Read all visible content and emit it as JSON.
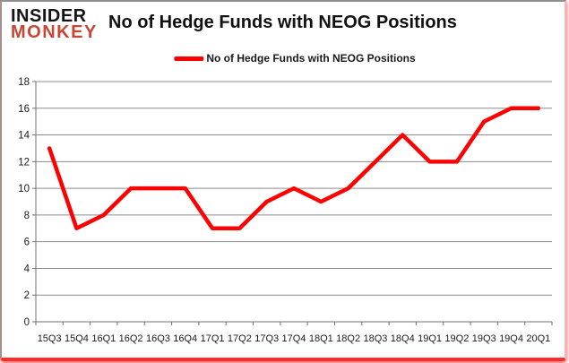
{
  "logo": {
    "line1": "INSIDER",
    "line2": "MONKEY"
  },
  "header": {
    "title": "No of Hedge Funds with NEOG Positions"
  },
  "legend": {
    "label": "No of Hedge Funds with NEOG Positions"
  },
  "colors": {
    "series_red": "#ff0000",
    "logo_red": "#c74634",
    "gridline": "#8c8c8c",
    "axis": "#707070",
    "label": "#1a1a1a"
  },
  "chart_data": {
    "type": "line",
    "title": "No of Hedge Funds with NEOG Positions",
    "categories": [
      "15Q3",
      "15Q4",
      "16Q1",
      "16Q2",
      "16Q3",
      "16Q4",
      "17Q1",
      "17Q2",
      "17Q3",
      "17Q4",
      "18Q1",
      "18Q2",
      "18Q3",
      "18Q4",
      "19Q1",
      "19Q2",
      "19Q3",
      "19Q4",
      "20Q1"
    ],
    "series": [
      {
        "name": "No of Hedge Funds with NEOG Positions",
        "color": "#ff0000",
        "values": [
          13,
          7,
          8,
          10,
          10,
          10,
          7,
          7,
          9,
          10,
          9,
          10,
          12,
          14,
          12,
          12,
          15,
          16,
          16
        ]
      }
    ],
    "xlabel": "",
    "ylabel": "",
    "ylim": [
      0,
      18
    ],
    "ytick_step": 2,
    "grid": true,
    "legend_position": "top-center"
  }
}
